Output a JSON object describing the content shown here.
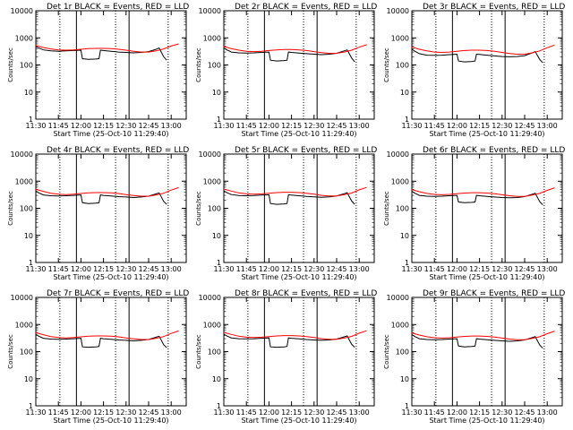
{
  "chart_data": {
    "type": "line",
    "grid": false,
    "y_scale": "log",
    "ylim": [
      1,
      10000
    ],
    "y_ticks": [
      "1",
      "10",
      "100",
      "1000",
      "10000"
    ],
    "x_ticks": [
      "11:30",
      "11:45",
      "12:00",
      "12:15",
      "12:30",
      "12:45",
      "13:00"
    ],
    "x_range_minutes_after_start": [
      0,
      100
    ],
    "ylabel": "Counts/sec",
    "xlabel": "Start Time (25-Oct-10 11:29:40)",
    "solid_markers_minutes": [
      27,
      62
    ],
    "dotted_markers_minutes": [
      16,
      53,
      88
    ],
    "panels": [
      {
        "title": "Det 1r BLACK = Events, RED = LLD",
        "series": [
          {
            "color": "#000000",
            "x": [
              0,
              2,
              5,
              10,
              15,
              20,
              25,
              30,
              31,
              35,
              40,
              42,
              43,
              45,
              50,
              55,
              60,
              65,
              70,
              75,
              80,
              82,
              85,
              87
            ],
            "y": [
              480,
              420,
              360,
              330,
              320,
              330,
              340,
              350,
              170,
              160,
              165,
              170,
              350,
              340,
              320,
              300,
              290,
              280,
              290,
              310,
              380,
              420,
              200,
              150
            ]
          },
          {
            "color": "#ff0000",
            "x": [
              0,
              5,
              10,
              15,
              20,
              25,
              30,
              35,
              40,
              45,
              50,
              55,
              60,
              65,
              70,
              75,
              80,
              85,
              90,
              95
            ],
            "y": [
              520,
              440,
              390,
              360,
              350,
              360,
              380,
              400,
              410,
              410,
              400,
              380,
              350,
              320,
              300,
              300,
              330,
              390,
              500,
              600
            ]
          }
        ]
      },
      {
        "title": "Det 2r BLACK = Events, RED = LLD",
        "series": [
          {
            "color": "#000000",
            "x": [
              0,
              2,
              5,
              10,
              15,
              20,
              25,
              30,
              31,
              35,
              40,
              42,
              43,
              45,
              50,
              55,
              60,
              65,
              70,
              75,
              80,
              82,
              85,
              87
            ],
            "y": [
              420,
              360,
              300,
              280,
              275,
              280,
              290,
              300,
              150,
              140,
              145,
              150,
              300,
              290,
              275,
              260,
              250,
              240,
              250,
              270,
              330,
              360,
              180,
              130
            ]
          },
          {
            "color": "#ff0000",
            "x": [
              0,
              5,
              10,
              15,
              20,
              25,
              30,
              35,
              40,
              45,
              50,
              55,
              60,
              65,
              70,
              75,
              80,
              85,
              90,
              95
            ],
            "y": [
              480,
              400,
              350,
              320,
              310,
              320,
              340,
              360,
              370,
              370,
              360,
              340,
              310,
              285,
              270,
              270,
              300,
              350,
              450,
              560
            ]
          }
        ]
      },
      {
        "title": "Det 3r BLACK = Events, RED = LLD",
        "series": [
          {
            "color": "#000000",
            "x": [
              0,
              2,
              5,
              10,
              15,
              20,
              25,
              30,
              31,
              35,
              40,
              42,
              43,
              45,
              50,
              55,
              60,
              65,
              70,
              75,
              80,
              82,
              85,
              87
            ],
            "y": [
              380,
              320,
              260,
              230,
              225,
              230,
              240,
              250,
              140,
              130,
              135,
              140,
              250,
              245,
              230,
              215,
              205,
              200,
              205,
              220,
              280,
              310,
              160,
              120
            ]
          },
          {
            "color": "#ff0000",
            "x": [
              0,
              5,
              10,
              15,
              20,
              25,
              30,
              35,
              40,
              45,
              50,
              55,
              60,
              65,
              70,
              75,
              80,
              85,
              90,
              95
            ],
            "y": [
              460,
              380,
              330,
              300,
              290,
              300,
              320,
              340,
              350,
              350,
              340,
              320,
              290,
              265,
              250,
              250,
              280,
              330,
              430,
              540
            ]
          }
        ]
      },
      {
        "title": "Det 4r BLACK = Events, RED = LLD",
        "series": [
          {
            "color": "#000000",
            "x": [
              0,
              2,
              5,
              10,
              15,
              20,
              25,
              30,
              31,
              35,
              40,
              42,
              43,
              45,
              50,
              55,
              60,
              65,
              70,
              75,
              80,
              82,
              85,
              87
            ],
            "y": [
              430,
              370,
              310,
              290,
              285,
              290,
              300,
              310,
              160,
              150,
              155,
              160,
              310,
              300,
              285,
              270,
              260,
              250,
              260,
              280,
              340,
              370,
              180,
              140
            ]
          },
          {
            "color": "#ff0000",
            "x": [
              0,
              5,
              10,
              15,
              20,
              25,
              30,
              35,
              40,
              45,
              50,
              55,
              60,
              65,
              70,
              75,
              80,
              85,
              90,
              95
            ],
            "y": [
              500,
              420,
              360,
              330,
              320,
              330,
              350,
              370,
              380,
              380,
              370,
              350,
              320,
              295,
              280,
              280,
              310,
              360,
              470,
              580
            ]
          }
        ]
      },
      {
        "title": "Det 5r BLACK = Events, RED = LLD",
        "series": [
          {
            "color": "#000000",
            "x": [
              0,
              2,
              5,
              10,
              15,
              20,
              25,
              30,
              31,
              35,
              40,
              42,
              43,
              45,
              50,
              55,
              60,
              65,
              70,
              75,
              80,
              82,
              85,
              87
            ],
            "y": [
              440,
              380,
              320,
              295,
              290,
              295,
              305,
              315,
              150,
              140,
              145,
              150,
              315,
              305,
              290,
              275,
              265,
              255,
              265,
              285,
              345,
              375,
              185,
              140
            ]
          },
          {
            "color": "#ff0000",
            "x": [
              0,
              5,
              10,
              15,
              20,
              25,
              30,
              35,
              40,
              45,
              50,
              55,
              60,
              65,
              70,
              75,
              80,
              85,
              90,
              95
            ],
            "y": [
              510,
              430,
              370,
              340,
              330,
              340,
              360,
              380,
              390,
              390,
              380,
              360,
              330,
              300,
              285,
              285,
              315,
              365,
              480,
              590
            ]
          }
        ]
      },
      {
        "title": "Det 6r BLACK = Events, RED = LLD",
        "series": [
          {
            "color": "#000000",
            "x": [
              0,
              2,
              5,
              10,
              15,
              20,
              25,
              30,
              31,
              35,
              40,
              42,
              43,
              45,
              50,
              55,
              60,
              65,
              70,
              75,
              80,
              82,
              85,
              87
            ],
            "y": [
              420,
              360,
              300,
              280,
              275,
              280,
              290,
              300,
              170,
              160,
              165,
              170,
              300,
              290,
              275,
              260,
              250,
              245,
              250,
              270,
              330,
              360,
              175,
              135
            ]
          },
          {
            "color": "#ff0000",
            "x": [
              0,
              5,
              10,
              15,
              20,
              25,
              30,
              35,
              40,
              45,
              50,
              55,
              60,
              65,
              70,
              75,
              80,
              85,
              90,
              95
            ],
            "y": [
              490,
              410,
              355,
              325,
              315,
              325,
              345,
              365,
              375,
              375,
              365,
              345,
              315,
              290,
              275,
              275,
              305,
              355,
              460,
              570
            ]
          }
        ]
      },
      {
        "title": "Det 7r BLACK = Events, RED = LLD",
        "series": [
          {
            "color": "#000000",
            "x": [
              0,
              2,
              5,
              10,
              15,
              20,
              25,
              30,
              31,
              35,
              40,
              42,
              43,
              45,
              50,
              55,
              60,
              65,
              70,
              75,
              80,
              82,
              85,
              87
            ],
            "y": [
              430,
              370,
              310,
              290,
              285,
              290,
              300,
              310,
              150,
              145,
              150,
              155,
              310,
              300,
              285,
              270,
              260,
              250,
              260,
              280,
              340,
              370,
              180,
              140
            ]
          },
          {
            "color": "#ff0000",
            "x": [
              0,
              5,
              10,
              15,
              20,
              25,
              30,
              35,
              40,
              45,
              50,
              55,
              60,
              65,
              70,
              75,
              80,
              85,
              90,
              95
            ],
            "y": [
              500,
              420,
              360,
              330,
              320,
              330,
              350,
              370,
              380,
              380,
              370,
              350,
              320,
              295,
              280,
              280,
              310,
              360,
              470,
              580
            ]
          }
        ]
      },
      {
        "title": "Det 8r BLACK = Events, RED = LLD",
        "series": [
          {
            "color": "#000000",
            "x": [
              0,
              2,
              5,
              10,
              15,
              20,
              25,
              30,
              31,
              35,
              40,
              42,
              43,
              45,
              50,
              55,
              60,
              65,
              70,
              75,
              80,
              82,
              85,
              87
            ],
            "y": [
              440,
              380,
              320,
              300,
              295,
              300,
              310,
              320,
              150,
              145,
              150,
              155,
              320,
              310,
              295,
              280,
              270,
              260,
              270,
              290,
              350,
              380,
              185,
              145
            ]
          },
          {
            "color": "#ff0000",
            "x": [
              0,
              5,
              10,
              15,
              20,
              25,
              30,
              35,
              40,
              45,
              50,
              55,
              60,
              65,
              70,
              75,
              80,
              85,
              90,
              95
            ],
            "y": [
              510,
              430,
              370,
              340,
              330,
              340,
              360,
              380,
              390,
              390,
              380,
              360,
              330,
              300,
              285,
              285,
              315,
              365,
              480,
              590
            ]
          }
        ]
      },
      {
        "title": "Det 9r BLACK = Events, RED = LLD",
        "series": [
          {
            "color": "#000000",
            "x": [
              0,
              2,
              5,
              10,
              15,
              20,
              25,
              30,
              31,
              35,
              40,
              42,
              43,
              45,
              50,
              55,
              60,
              65,
              70,
              75,
              80,
              82,
              85,
              87
            ],
            "y": [
              420,
              360,
              300,
              280,
              275,
              280,
              290,
              300,
              160,
              150,
              155,
              160,
              300,
              290,
              275,
              260,
              250,
              240,
              250,
              270,
              330,
              360,
              175,
              135
            ]
          },
          {
            "color": "#ff0000",
            "x": [
              0,
              5,
              10,
              15,
              20,
              25,
              30,
              35,
              40,
              45,
              50,
              55,
              60,
              65,
              70,
              75,
              80,
              85,
              90,
              95
            ],
            "y": [
              490,
              410,
              355,
              325,
              315,
              325,
              345,
              365,
              375,
              375,
              365,
              345,
              315,
              290,
              275,
              275,
              305,
              355,
              460,
              570
            ]
          }
        ]
      }
    ]
  }
}
